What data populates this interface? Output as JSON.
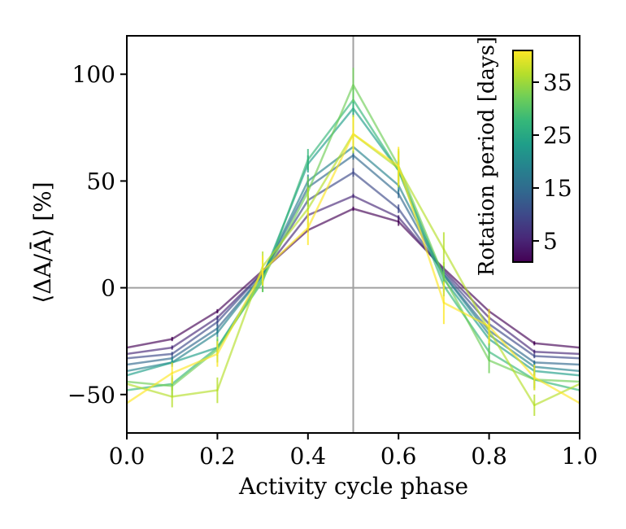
{
  "chart_data": {
    "type": "line",
    "xlabel": "Activity cycle phase",
    "ylabel": "⟨ΔA/Ā⟩ [%]",
    "xlim": [
      0.0,
      1.0
    ],
    "ylim": [
      -68,
      118
    ],
    "x_ticks": [
      0.0,
      0.2,
      0.4,
      0.6,
      0.8,
      1.0
    ],
    "x_tick_labels": [
      "0.0",
      "0.2",
      "0.4",
      "0.6",
      "0.8",
      "1.0"
    ],
    "y_ticks": [
      -50,
      0,
      50,
      100
    ],
    "y_tick_labels": [
      "−50",
      "0",
      "50",
      "100"
    ],
    "reference_lines": {
      "horizontal_y": 0,
      "vertical_x": 0.5
    },
    "x": [
      0.0,
      0.1,
      0.2,
      0.3,
      0.4,
      0.5,
      0.6,
      0.7,
      0.8,
      0.9,
      1.0
    ],
    "series": [
      {
        "name": "P=2 days",
        "rotation_period": 2,
        "color": "#440154",
        "values": [
          -28,
          -24,
          -11,
          8,
          27,
          37,
          31,
          9,
          -11,
          -26,
          -28
        ],
        "errors": [
          1,
          1,
          1,
          1,
          1,
          1,
          2,
          1,
          1,
          1,
          1
        ]
      },
      {
        "name": "P=6 days",
        "rotation_period": 6,
        "color": "#482878",
        "values": [
          -31,
          -28,
          -14,
          7,
          34,
          43,
          33,
          8,
          -14,
          -30,
          -31
        ],
        "errors": [
          1,
          1,
          1,
          1,
          1,
          1,
          1,
          1,
          1,
          1,
          1
        ]
      },
      {
        "name": "P=10 days",
        "rotation_period": 10,
        "color": "#3e4989",
        "values": [
          -33,
          -31,
          -16,
          7,
          41,
          54,
          37,
          7,
          -17,
          -32,
          -33
        ],
        "errors": [
          1,
          1,
          2,
          1,
          2,
          2,
          2,
          1,
          1,
          1,
          1
        ]
      },
      {
        "name": "P=14 days",
        "rotation_period": 14,
        "color": "#31688e",
        "values": [
          -36,
          -33,
          -19,
          6,
          47,
          62,
          44,
          6,
          -20,
          -35,
          -36
        ],
        "errors": [
          1,
          1,
          2,
          1,
          2,
          2,
          2,
          1,
          2,
          1,
          1
        ]
      },
      {
        "name": "P=18 days",
        "rotation_period": 18,
        "color": "#26828e",
        "values": [
          -39,
          -35,
          -21,
          6,
          50,
          66,
          48,
          6,
          -22,
          -37,
          -39
        ],
        "errors": [
          1,
          1,
          2,
          2,
          3,
          3,
          3,
          2,
          2,
          2,
          1
        ]
      },
      {
        "name": "P=22 days",
        "rotation_period": 22,
        "color": "#1f9e89",
        "values": [
          -41,
          -35,
          -28,
          5,
          58,
          84,
          55,
          4,
          -24,
          -39,
          -41
        ],
        "errors": [
          2,
          2,
          3,
          3,
          4,
          5,
          4,
          3,
          3,
          2,
          2
        ]
      },
      {
        "name": "P=26 days",
        "rotation_period": 26,
        "color": "#35b779",
        "values": [
          -48,
          -45,
          -28,
          3,
          60,
          88,
          55,
          1,
          -30,
          -43,
          -48
        ],
        "errors": [
          3,
          3,
          4,
          5,
          5,
          6,
          5,
          5,
          4,
          4,
          3
        ]
      },
      {
        "name": "P=30 days",
        "rotation_period": 30,
        "color": "#6ece58",
        "values": [
          -44,
          -46,
          -29,
          4,
          45,
          95,
          57,
          5,
          -34,
          -43,
          -44
        ],
        "errors": [
          4,
          5,
          6,
          6,
          7,
          8,
          7,
          7,
          6,
          5,
          4
        ]
      },
      {
        "name": "P=34 days",
        "rotation_period": 34,
        "color": "#b5de2b",
        "values": [
          -45,
          -51,
          -48,
          10,
          37,
          72,
          56,
          18,
          -20,
          -55,
          -45
        ],
        "errors": [
          4,
          5,
          6,
          7,
          10,
          9,
          9,
          8,
          7,
          5,
          4
        ]
      },
      {
        "name": "P=40 days",
        "rotation_period": 40,
        "color": "#fde725",
        "values": [
          -54,
          -40,
          -31,
          8,
          28,
          72,
          57,
          -7,
          -18,
          -42,
          -54
        ],
        "errors": [
          4,
          5,
          6,
          7,
          8,
          8,
          9,
          10,
          8,
          6,
          4
        ]
      }
    ],
    "colorbar": {
      "label": "Rotation period [days]",
      "cmap": "viridis",
      "range": [
        1,
        41
      ],
      "ticks": [
        5,
        15,
        25,
        35
      ],
      "tick_labels": [
        "5",
        "15",
        "25",
        "35"
      ],
      "stops": [
        "#440154",
        "#482878",
        "#3e4989",
        "#31688e",
        "#26828e",
        "#1f9e89",
        "#35b779",
        "#6ece58",
        "#b5de2b",
        "#fde725"
      ]
    }
  }
}
